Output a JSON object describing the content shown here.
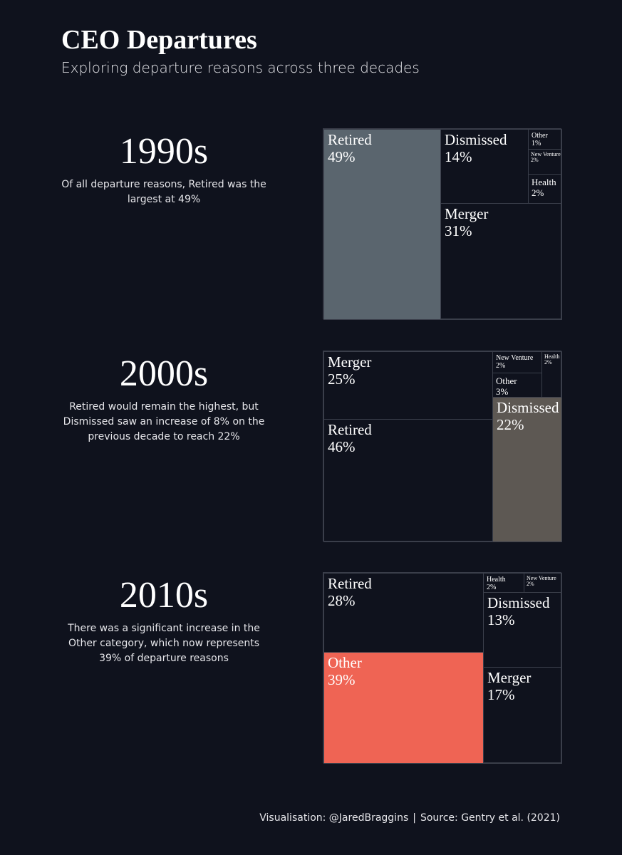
{
  "title": "CEO Departures",
  "subtitle": "Exploring departure reasons across three decades",
  "colors": {
    "background": "#0f121d",
    "cell_default": "#0f121d",
    "border": "#3a3e4a",
    "highlight_1990s": "#5a656e",
    "highlight_2000s": "#5d5853",
    "highlight_2010s": "#ef6454"
  },
  "chart_data": [
    {
      "type": "treemap",
      "decade": "1990s",
      "note": "Of all departure reasons, Retired was the largest at 49%",
      "highlight": "Retired",
      "cells": [
        {
          "name": "Retired",
          "value": "49%"
        },
        {
          "name": "Dismissed",
          "value": "14%"
        },
        {
          "name": "Merger",
          "value": "31%"
        },
        {
          "name": "Other",
          "value": "1%"
        },
        {
          "name": "New Venture",
          "value": "2%"
        },
        {
          "name": "Health",
          "value": "2%"
        }
      ]
    },
    {
      "type": "treemap",
      "decade": "2000s",
      "note": "Retired would remain the highest, but Dismissed saw an increase of 8% on the previous decade to reach 22%",
      "highlight": "Dismissed",
      "cells": [
        {
          "name": "Merger",
          "value": "25%"
        },
        {
          "name": "Retired",
          "value": "46%"
        },
        {
          "name": "New Venture",
          "value": "2%"
        },
        {
          "name": "Health",
          "value": "2%"
        },
        {
          "name": "Other",
          "value": "3%"
        },
        {
          "name": "Dismissed",
          "value": "22%"
        }
      ]
    },
    {
      "type": "treemap",
      "decade": "2010s",
      "note": "There was a significant increase in the Other category, which now represents 39% of departure reasons",
      "highlight": "Other",
      "cells": [
        {
          "name": "Retired",
          "value": "28%"
        },
        {
          "name": "Other",
          "value": "39%"
        },
        {
          "name": "Health",
          "value": "2%"
        },
        {
          "name": "New Venture",
          "value": "2%"
        },
        {
          "name": "Dismissed",
          "value": "13%"
        },
        {
          "name": "Merger",
          "value": "17%"
        }
      ]
    }
  ],
  "footer": {
    "credit": "Visualisation: @JaredBraggins",
    "separator": "|",
    "source": "Source: Gentry et al. (2021)"
  }
}
